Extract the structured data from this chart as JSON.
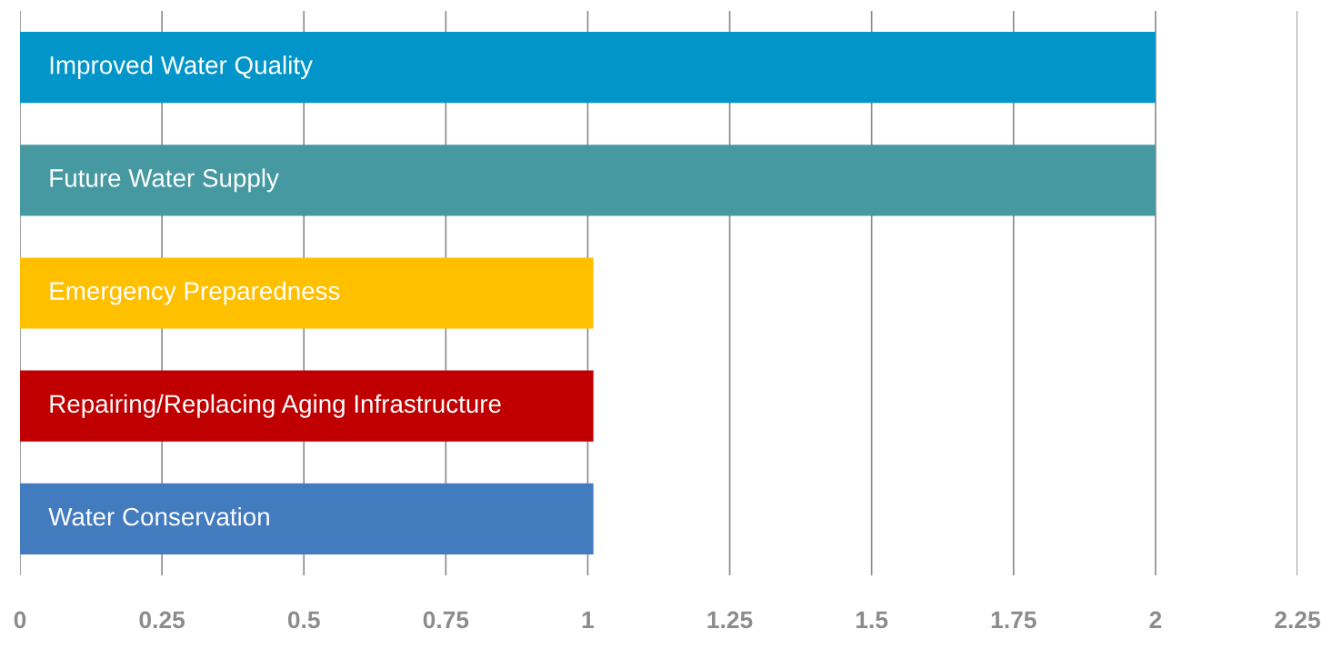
{
  "chart_data": {
    "type": "bar",
    "orientation": "horizontal",
    "categories": [
      "Improved Water Quality",
      "Future Water Supply",
      "Emergency Preparedness",
      "Repairing/Replacing Aging Infrastructure",
      "Water Conservation"
    ],
    "values": [
      2,
      2,
      1.01,
      1.01,
      1.01
    ],
    "colors": [
      "#0295c9",
      "#4699a1",
      "#ffc000",
      "#c00000",
      "#437bbf"
    ],
    "xlim": [
      0,
      2.25
    ],
    "xticks": [
      0,
      0.25,
      0.5,
      0.75,
      1,
      1.25,
      1.5,
      1.75,
      2,
      2.25
    ],
    "grid": "x"
  }
}
